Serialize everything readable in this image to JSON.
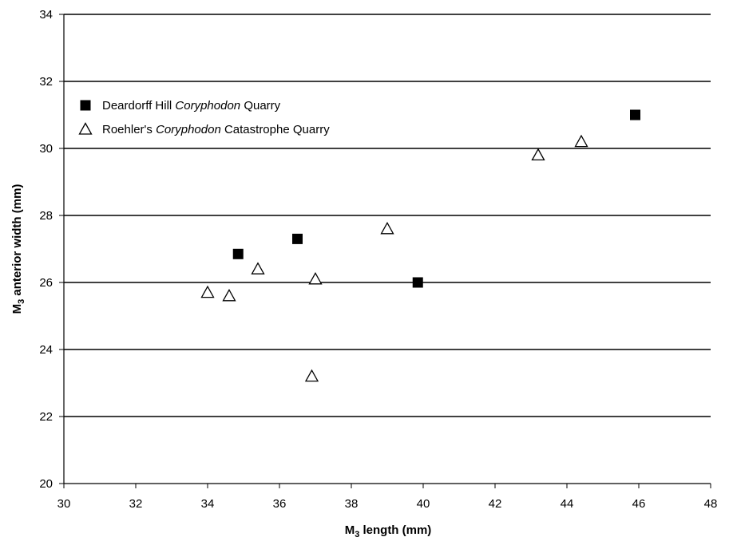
{
  "chart_data": {
    "type": "scatter",
    "title": "",
    "xlabel": {
      "main": "M",
      "sub": "3",
      "rest": " length (mm)"
    },
    "ylabel": {
      "main": "M",
      "sub": "3",
      "rest": " anterior width (mm)"
    },
    "xlim": [
      30,
      48
    ],
    "ylim": [
      20,
      34
    ],
    "x_ticks": [
      "30",
      "32",
      "34",
      "36",
      "38",
      "40",
      "42",
      "44",
      "46",
      "48"
    ],
    "y_ticks": [
      "20",
      "22",
      "24",
      "26",
      "28",
      "30",
      "32",
      "34"
    ],
    "grid": "horizontal",
    "legend_position": "top-left",
    "series": [
      {
        "name": {
          "before": "Deardorff Hill ",
          "italic": "Coryphodon",
          "after": " Quarry"
        },
        "marker": "filled-square",
        "points": [
          {
            "x": 34.85,
            "y": 26.85
          },
          {
            "x": 36.5,
            "y": 27.3
          },
          {
            "x": 39.85,
            "y": 26.0
          },
          {
            "x": 45.9,
            "y": 31.0
          }
        ]
      },
      {
        "name": {
          "before": "Roehler's ",
          "italic": "Coryphodon",
          "after": " Catastrophe Quarry"
        },
        "marker": "open-triangle",
        "points": [
          {
            "x": 34.0,
            "y": 25.7
          },
          {
            "x": 34.6,
            "y": 25.6
          },
          {
            "x": 35.4,
            "y": 26.4
          },
          {
            "x": 36.9,
            "y": 23.2
          },
          {
            "x": 37.0,
            "y": 26.1
          },
          {
            "x": 39.0,
            "y": 27.6
          },
          {
            "x": 43.2,
            "y": 29.8
          },
          {
            "x": 44.4,
            "y": 30.2
          }
        ]
      }
    ]
  }
}
